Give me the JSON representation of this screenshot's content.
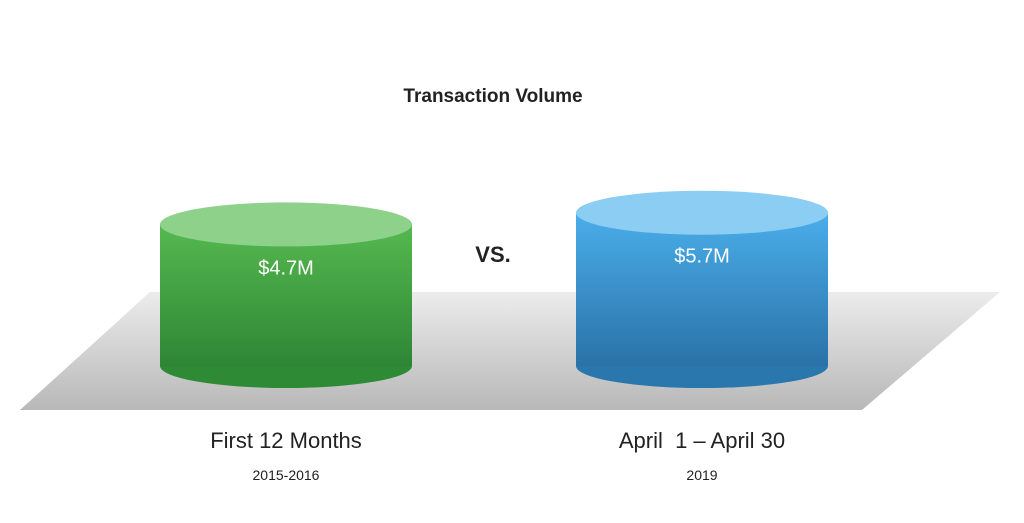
{
  "chart_data": {
    "type": "bar",
    "style": "3d-cylinder",
    "title": "Transaction Volume",
    "separator_label": "VS.",
    "categories": [
      "First 12 Months",
      "April  1 – April 30"
    ],
    "sublabels": [
      "2015-2016",
      "2019"
    ],
    "values": [
      4.7,
      5.7
    ],
    "value_labels": [
      "$4.7M",
      "$5.7M"
    ],
    "unit": "$M",
    "colors": {
      "green_top": "#8dd18b",
      "green_body_light": "#4fb04a",
      "green_body_dark": "#2f8a36",
      "blue_top": "#8ccdf3",
      "blue_body_light": "#46a9e3",
      "blue_body_dark": "#2a77ad",
      "floor_light": "#e6e6e6",
      "floor_dark": "#bdbdbd",
      "text": "#222222",
      "value_text": "#ffffff"
    }
  }
}
